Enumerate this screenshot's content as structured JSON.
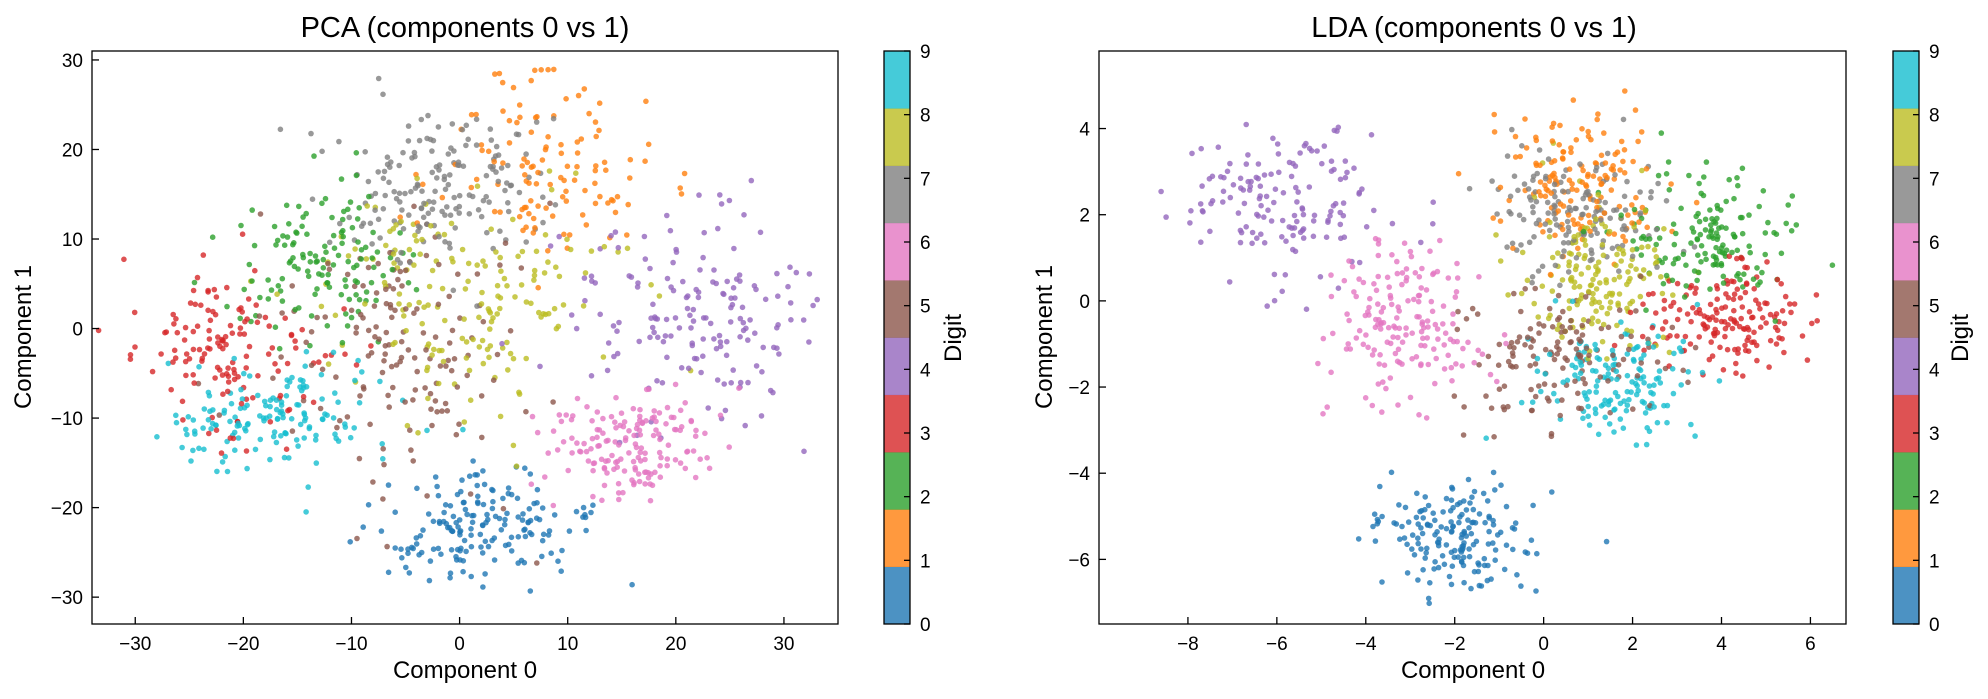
{
  "chart_data": [
    {
      "type": "scatter",
      "title": "PCA (components 0 vs 1)",
      "xlabel": "Component 0",
      "ylabel": "Component 1",
      "xlim": [
        -34,
        35
      ],
      "ylim": [
        -33,
        31
      ],
      "xticks": [
        -30,
        -20,
        -10,
        0,
        10,
        20,
        30
      ],
      "yticks": [
        -30,
        -20,
        -10,
        0,
        10,
        20,
        30
      ],
      "grid": false,
      "colorbar": {
        "label": "Digit",
        "ticks": [
          0,
          1,
          2,
          3,
          4,
          5,
          6,
          7,
          8,
          9
        ]
      },
      "clusters": [
        {
          "digit": 0,
          "center": [
            1.5,
            -22.5
          ],
          "spread": [
            5.0,
            3.2
          ],
          "n": 170
        },
        {
          "digit": 1,
          "center": [
            7.5,
            18.5
          ],
          "spread": [
            5.0,
            5.5
          ],
          "n": 120
        },
        {
          "digit": 2,
          "center": [
            -13.0,
            7.5
          ],
          "spread": [
            4.0,
            4.0
          ],
          "n": 130
        },
        {
          "digit": 3,
          "center": [
            -21.0,
            -3.5
          ],
          "spread": [
            4.5,
            5.5
          ],
          "n": 140
        },
        {
          "digit": 4,
          "center": [
            22.0,
            1.0
          ],
          "spread": [
            6.0,
            6.0
          ],
          "n": 170
        },
        {
          "digit": 5,
          "center": [
            -5.0,
            -2.0
          ],
          "spread": [
            6.0,
            8.0
          ],
          "n": 150
        },
        {
          "digit": 6,
          "center": [
            15.0,
            -13.0
          ],
          "spread": [
            4.0,
            3.5
          ],
          "n": 160
        },
        {
          "digit": 7,
          "center": [
            -2.0,
            16.0
          ],
          "spread": [
            5.0,
            4.5
          ],
          "n": 170
        },
        {
          "digit": 8,
          "center": [
            1.0,
            4.0
          ],
          "spread": [
            7.0,
            6.0
          ],
          "n": 170
        },
        {
          "digit": 9,
          "center": [
            -17.0,
            -10.0
          ],
          "spread": [
            5.0,
            3.0
          ],
          "n": 150
        }
      ]
    },
    {
      "type": "scatter",
      "title": "LDA (components 0 vs 1)",
      "xlabel": "Component 0",
      "ylabel": "Component 1",
      "xlim": [
        -10,
        6.8
      ],
      "ylim": [
        -7.5,
        5.8
      ],
      "xticks": [
        -8,
        -6,
        -4,
        -2,
        0,
        2,
        4,
        6
      ],
      "yticks": [
        -6,
        -4,
        -2,
        0,
        2,
        4
      ],
      "grid": false,
      "colorbar": {
        "label": "Digit",
        "ticks": [
          0,
          1,
          2,
          3,
          4,
          5,
          6,
          7,
          8,
          9
        ]
      },
      "clusters": [
        {
          "digit": 0,
          "center": [
            -2.0,
            -5.4
          ],
          "spread": [
            0.9,
            0.65
          ],
          "n": 170
        },
        {
          "digit": 1,
          "center": [
            0.8,
            2.7
          ],
          "spread": [
            0.9,
            0.9
          ],
          "n": 150
        },
        {
          "digit": 2,
          "center": [
            3.7,
            1.5
          ],
          "spread": [
            0.8,
            0.8
          ],
          "n": 150
        },
        {
          "digit": 3,
          "center": [
            4.0,
            -0.4
          ],
          "spread": [
            0.9,
            0.6
          ],
          "n": 160
        },
        {
          "digit": 4,
          "center": [
            -6.0,
            2.2
          ],
          "spread": [
            1.3,
            0.9
          ],
          "n": 150
        },
        {
          "digit": 5,
          "center": [
            0.5,
            -1.3
          ],
          "spread": [
            1.3,
            0.9
          ],
          "n": 140
        },
        {
          "digit": 6,
          "center": [
            -3.2,
            -0.5
          ],
          "spread": [
            0.9,
            1.0
          ],
          "n": 170
        },
        {
          "digit": 7,
          "center": [
            0.6,
            2.0
          ],
          "spread": [
            0.9,
            0.8
          ],
          "n": 150
        },
        {
          "digit": 8,
          "center": [
            1.2,
            0.6
          ],
          "spread": [
            0.9,
            0.9
          ],
          "n": 160
        },
        {
          "digit": 9,
          "center": [
            1.6,
            -1.9
          ],
          "spread": [
            0.9,
            0.6
          ],
          "n": 150
        }
      ]
    }
  ],
  "palette": [
    "#1f77b4",
    "#ff7f0e",
    "#2ca02c",
    "#d62728",
    "#9467bd",
    "#8c564b",
    "#e377c2",
    "#7f7f7f",
    "#bcbd22",
    "#17becf"
  ],
  "point_alpha": 0.8
}
